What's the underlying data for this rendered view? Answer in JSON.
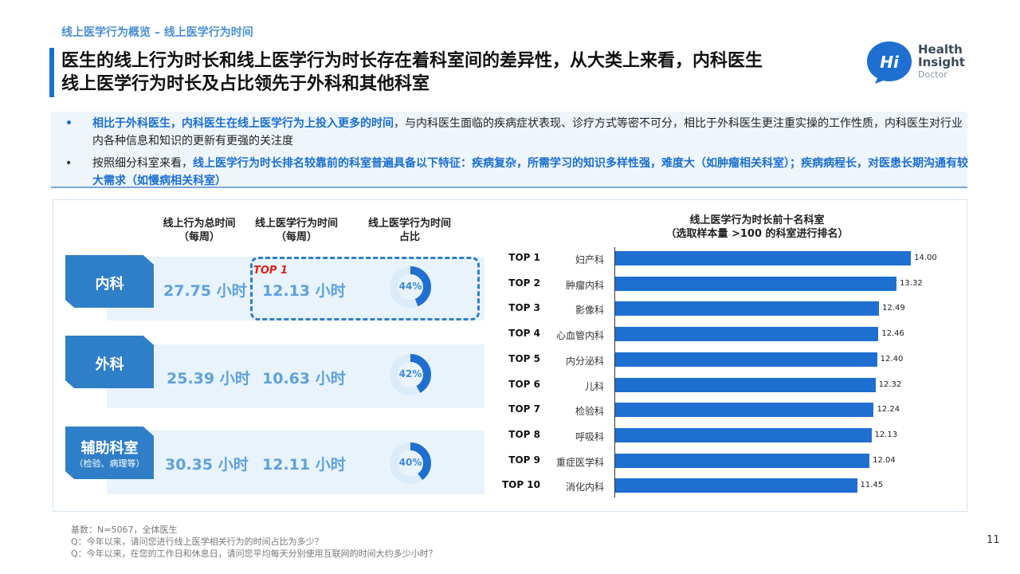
{
  "header": {
    "breadcrumb": "线上医学行为概览 – 线上医学行为时间",
    "title_line1": "医生的线上行为时长和线上医学行为时长存在着科室间的差异性，从大类上来看，内科医生",
    "title_line2": "线上医学行为时长及占比领先于外科和其他科室"
  },
  "logo": {
    "line1": "Health",
    "line2": "Insight",
    "line3": "Doctor",
    "mark": "Hi"
  },
  "bullets": [
    {
      "dot": "•",
      "highlight": "相比于外科医生，内科医生在线上医学行为上投入更多的时间",
      "rest": "，与内科医生面临的疾病症状表现、诊疗方式等密不可分，相比于外科医生更注重实操的工作性质，内科医生对行业内各种信息和知识的更新有更强的关注度"
    },
    {
      "dot": "•",
      "prefix": "按照细分科室来看，",
      "highlight": "线上医学行为时长排名较靠前的科室普遍具备以下特征：疾病复杂，所需学习的知识多样性强，难度大（如肿瘤相关科室）；疾病病程长，对医患长期沟通有较大需求（如慢病相关科室）"
    }
  ],
  "left_table": {
    "col1": "线上行为总时间（每周）",
    "col1_a": "线上行为总时间",
    "col1_b": "（每周）",
    "col2_a": "线上医学行为时间",
    "col2_b": "（每周）",
    "col3_a": "线上医学行为时间",
    "col3_b": "占比",
    "top1_label": "TOP 1",
    "rows": [
      {
        "dept": "内科",
        "sub": "",
        "total": "27.75 小时",
        "medical": "12.13 小时",
        "share_label": "44%",
        "share": 0.44
      },
      {
        "dept": "外科",
        "sub": "",
        "total": "25.39 小时",
        "medical": "10.63 小时",
        "share_label": "42%",
        "share": 0.42
      },
      {
        "dept": "辅助科室",
        "sub": "（检验、病理等）",
        "total": "30.35 小时",
        "medical": "12.11 小时",
        "share_label": "40%",
        "share": 0.4
      }
    ]
  },
  "chart_data": {
    "type": "bar",
    "orientation": "horizontal",
    "title_line1": "线上医学行为时长前十名科室",
    "title_line2": "（选取样本量 >100 的科室进行排名）",
    "ranks": [
      "TOP 1",
      "TOP 2",
      "TOP 3",
      "TOP 4",
      "TOP 5",
      "TOP 6",
      "TOP 7",
      "TOP 8",
      "TOP 9",
      "TOP 10"
    ],
    "categories": [
      "妇产科",
      "肿瘤内科",
      "影像科",
      "心血管内科",
      "内分泌科",
      "儿科",
      "检验科",
      "呼吸科",
      "重症医学科",
      "消化内科"
    ],
    "values": [
      14.0,
      13.32,
      12.49,
      12.46,
      12.4,
      12.32,
      12.24,
      12.13,
      12.04,
      11.45
    ],
    "value_labels": [
      "14.00",
      "13.32",
      "12.49",
      "12.46",
      "12.40",
      "12.32",
      "12.24",
      "12.13",
      "12.04",
      "11.45"
    ],
    "color": "#1f6fd1",
    "xlim": [
      0,
      14.6
    ]
  },
  "colors": {
    "accent": "#1a6fd0",
    "tab": "#2f7fc8",
    "value_text": "#5da2de",
    "row_bg": "#e9f3fb",
    "top1": "#e0201a"
  },
  "footnote": {
    "line1": "基数：N=5067，全体医生",
    "line2": "Q：今年以来，请问您进行线上医学相关行为的时间占比为多少？",
    "line3": "Q：今年以来，在您的工作日和休息日，请问您平均每天分别使用互联网的时间大约多少小时？"
  },
  "page_number": "11"
}
